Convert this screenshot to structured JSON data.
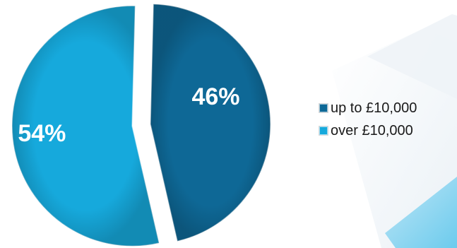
{
  "chart_data": {
    "type": "pie",
    "categories": [
      "up to £10,000",
      "over £10,000"
    ],
    "values": [
      46,
      54
    ],
    "data_labels": [
      "46%",
      "54%"
    ],
    "colors": [
      "#0e6896",
      "#16a9dc"
    ],
    "exploded": true,
    "legend_position": "right"
  },
  "legend": {
    "items": [
      {
        "label": "up to £10,000",
        "color": "#0e6896"
      },
      {
        "label": "over £10,000",
        "color": "#16a9dc"
      }
    ]
  }
}
